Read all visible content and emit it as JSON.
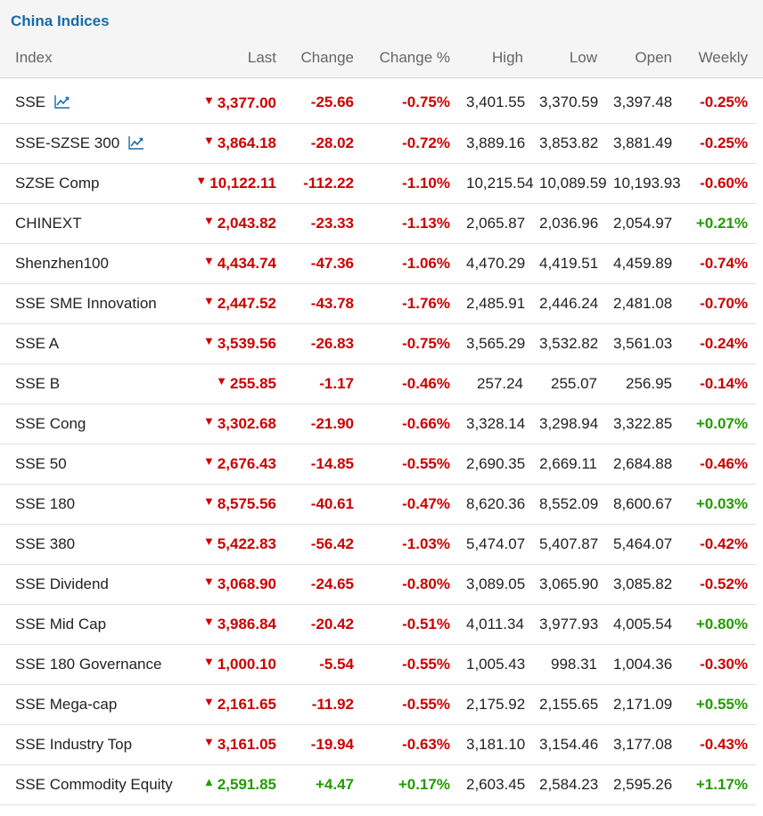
{
  "title": "China Indices",
  "columns": [
    "Index",
    "Last",
    "Change",
    "Change %",
    "High",
    "Low",
    "Open",
    "Weekly"
  ],
  "colors": {
    "negative": "#cc0000",
    "positive": "#219c00",
    "title": "#1a6aa8"
  },
  "rows": [
    {
      "name": "SSE",
      "chart_icon": true,
      "dir": "down",
      "last": "3,377.00",
      "change": "-25.66",
      "change_pct": "-0.75%",
      "high": "3,401.55",
      "low": "3,370.59",
      "open": "3,397.48",
      "weekly": "-0.25%"
    },
    {
      "name": "SSE-SZSE 300",
      "chart_icon": true,
      "dir": "down",
      "last": "3,864.18",
      "change": "-28.02",
      "change_pct": "-0.72%",
      "high": "3,889.16",
      "low": "3,853.82",
      "open": "3,881.49",
      "weekly": "-0.25%"
    },
    {
      "name": "SZSE Comp",
      "chart_icon": false,
      "dir": "down",
      "last": "10,122.11",
      "change": "-112.22",
      "change_pct": "-1.10%",
      "high": "10,215.54",
      "low": "10,089.59",
      "open": "10,193.93",
      "weekly": "-0.60%"
    },
    {
      "name": "CHINEXT",
      "chart_icon": false,
      "dir": "down",
      "last": "2,043.82",
      "change": "-23.33",
      "change_pct": "-1.13%",
      "high": "2,065.87",
      "low": "2,036.96",
      "open": "2,054.97",
      "weekly": "+0.21%"
    },
    {
      "name": "Shenzhen100",
      "chart_icon": false,
      "dir": "down",
      "last": "4,434.74",
      "change": "-47.36",
      "change_pct": "-1.06%",
      "high": "4,470.29",
      "low": "4,419.51",
      "open": "4,459.89",
      "weekly": "-0.74%"
    },
    {
      "name": "SSE SME Innovation",
      "chart_icon": false,
      "dir": "down",
      "last": "2,447.52",
      "change": "-43.78",
      "change_pct": "-1.76%",
      "high": "2,485.91",
      "low": "2,446.24",
      "open": "2,481.08",
      "weekly": "-0.70%"
    },
    {
      "name": "SSE A",
      "chart_icon": false,
      "dir": "down",
      "last": "3,539.56",
      "change": "-26.83",
      "change_pct": "-0.75%",
      "high": "3,565.29",
      "low": "3,532.82",
      "open": "3,561.03",
      "weekly": "-0.24%"
    },
    {
      "name": "SSE B",
      "chart_icon": false,
      "dir": "down",
      "last": "255.85",
      "change": "-1.17",
      "change_pct": "-0.46%",
      "high": "257.24",
      "low": "255.07",
      "open": "256.95",
      "weekly": "-0.14%"
    },
    {
      "name": "SSE Cong",
      "chart_icon": false,
      "dir": "down",
      "last": "3,302.68",
      "change": "-21.90",
      "change_pct": "-0.66%",
      "high": "3,328.14",
      "low": "3,298.94",
      "open": "3,322.85",
      "weekly": "+0.07%"
    },
    {
      "name": "SSE 50",
      "chart_icon": false,
      "dir": "down",
      "last": "2,676.43",
      "change": "-14.85",
      "change_pct": "-0.55%",
      "high": "2,690.35",
      "low": "2,669.11",
      "open": "2,684.88",
      "weekly": "-0.46%"
    },
    {
      "name": "SSE 180",
      "chart_icon": false,
      "dir": "down",
      "last": "8,575.56",
      "change": "-40.61",
      "change_pct": "-0.47%",
      "high": "8,620.36",
      "low": "8,552.09",
      "open": "8,600.67",
      "weekly": "+0.03%"
    },
    {
      "name": "SSE 380",
      "chart_icon": false,
      "dir": "down",
      "last": "5,422.83",
      "change": "-56.42",
      "change_pct": "-1.03%",
      "high": "5,474.07",
      "low": "5,407.87",
      "open": "5,464.07",
      "weekly": "-0.42%"
    },
    {
      "name": "SSE Dividend",
      "chart_icon": false,
      "dir": "down",
      "last": "3,068.90",
      "change": "-24.65",
      "change_pct": "-0.80%",
      "high": "3,089.05",
      "low": "3,065.90",
      "open": "3,085.82",
      "weekly": "-0.52%"
    },
    {
      "name": "SSE Mid Cap",
      "chart_icon": false,
      "dir": "down",
      "last": "3,986.84",
      "change": "-20.42",
      "change_pct": "-0.51%",
      "high": "4,011.34",
      "low": "3,977.93",
      "open": "4,005.54",
      "weekly": "+0.80%"
    },
    {
      "name": "SSE 180 Governance",
      "chart_icon": false,
      "dir": "down",
      "last": "1,000.10",
      "change": "-5.54",
      "change_pct": "-0.55%",
      "high": "1,005.43",
      "low": "998.31",
      "open": "1,004.36",
      "weekly": "-0.30%"
    },
    {
      "name": "SSE Mega-cap",
      "chart_icon": false,
      "dir": "down",
      "last": "2,161.65",
      "change": "-11.92",
      "change_pct": "-0.55%",
      "high": "2,175.92",
      "low": "2,155.65",
      "open": "2,171.09",
      "weekly": "+0.55%"
    },
    {
      "name": "SSE Industry Top",
      "chart_icon": false,
      "dir": "down",
      "last": "3,161.05",
      "change": "-19.94",
      "change_pct": "-0.63%",
      "high": "3,181.10",
      "low": "3,154.46",
      "open": "3,177.08",
      "weekly": "-0.43%"
    },
    {
      "name": "SSE Commodity Equity",
      "chart_icon": false,
      "dir": "up",
      "last": "2,591.85",
      "change": "+4.47",
      "change_pct": "+0.17%",
      "high": "2,603.45",
      "low": "2,584.23",
      "open": "2,595.26",
      "weekly": "+1.17%"
    }
  ]
}
